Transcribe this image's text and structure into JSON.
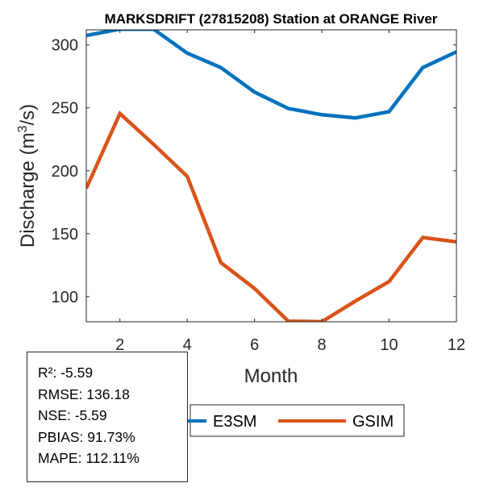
{
  "chart_data": {
    "type": "line",
    "title": "MARKSDRIFT (27815208)  Station at  ORANGE  River",
    "xlabel": "Month",
    "ylabel": "Discharge (m³/s)",
    "ylabel_parts": {
      "base": "Discharge (m",
      "sup": "3",
      "tail": "/s)"
    },
    "xlim": [
      1,
      12
    ],
    "ylim": [
      80,
      312
    ],
    "xticks": [
      2,
      4,
      6,
      8,
      10,
      12
    ],
    "yticks": [
      100,
      150,
      200,
      250,
      300
    ],
    "grid": false,
    "x": [
      1,
      2,
      3,
      4,
      5,
      6,
      7,
      8,
      9,
      10,
      11,
      12
    ],
    "series": [
      {
        "name": "E3SM",
        "color": "#0072BD",
        "values": [
          307.5,
          312.5,
          312.5,
          293.5,
          282,
          262.5,
          249.5,
          244.5,
          242,
          247,
          282,
          294.5
        ]
      },
      {
        "name": "GSIM",
        "color": "#D95319",
        "values": [
          186,
          245.5,
          221,
          195.5,
          127,
          106.5,
          80.5,
          80,
          96.5,
          112,
          147,
          143.5
        ]
      }
    ],
    "legend": {
      "placement": "bottom-center",
      "orientation": "horizontal",
      "entries": [
        "E3SM",
        "GSIM"
      ]
    }
  },
  "stats": {
    "r2": "R²: -5.59",
    "rmse": "RMSE: 136.18",
    "nse": "NSE: -5.59",
    "pbias": "PBIAS: 91.73%",
    "mape": "MAPE: 112.11%"
  }
}
